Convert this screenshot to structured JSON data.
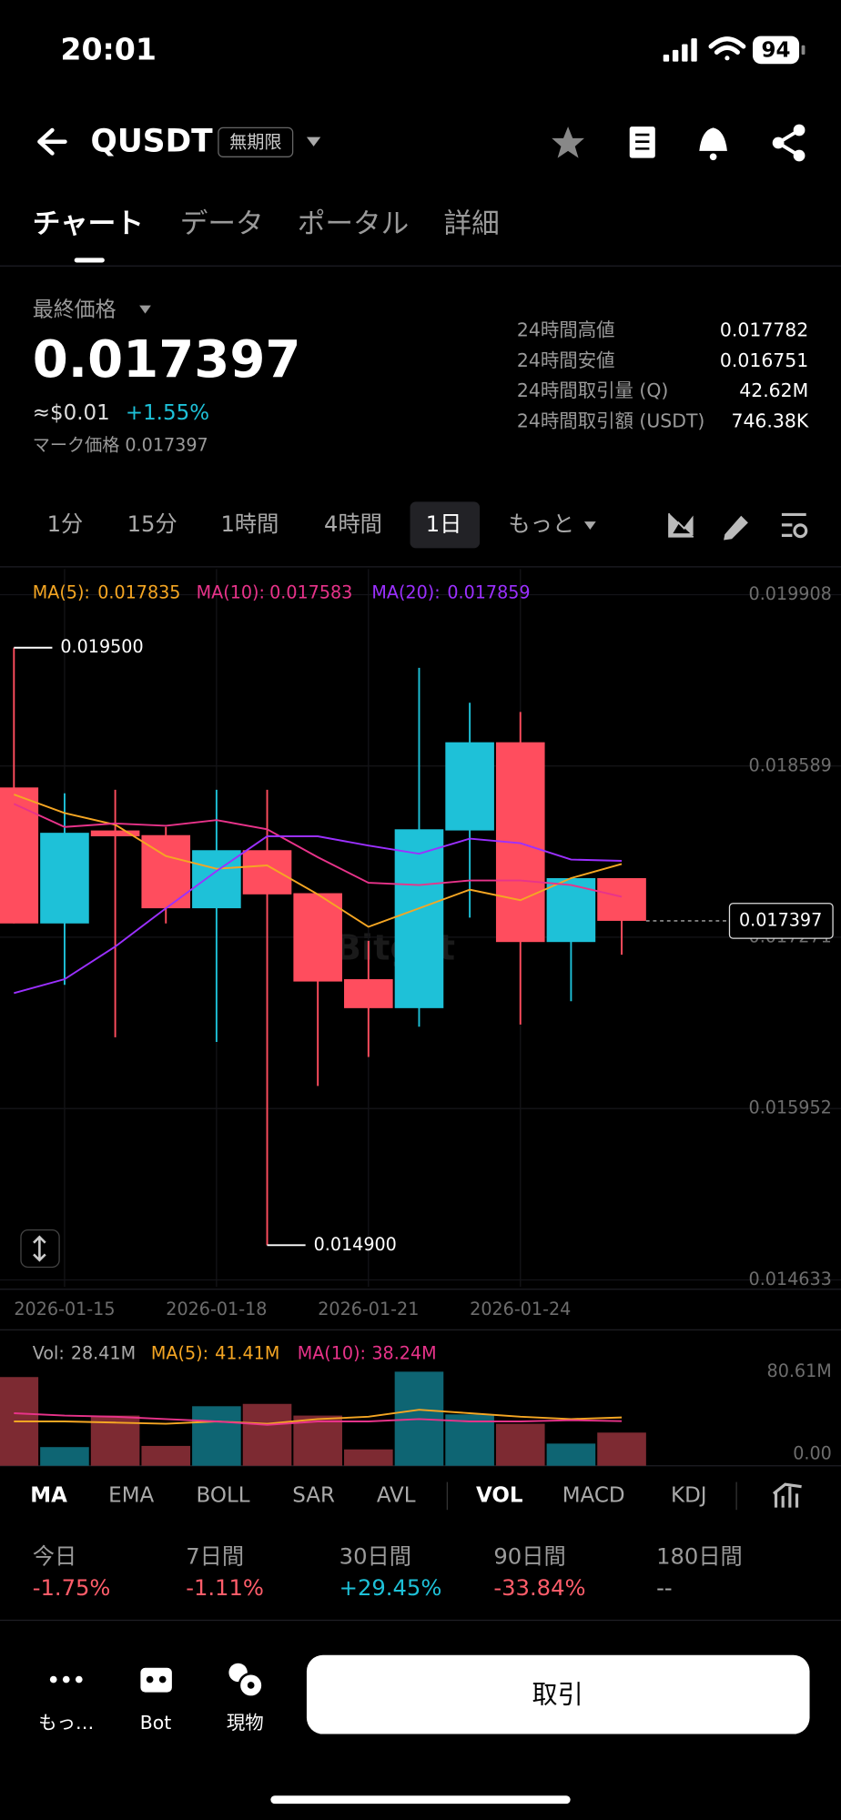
{
  "status_bar": {
    "time": "20:01",
    "battery": "94"
  },
  "header": {
    "symbol": "QUSDT",
    "tag": "無期限"
  },
  "tabs": [
    "チャート",
    "データ",
    "ポータル",
    "詳細"
  ],
  "price": {
    "label": "最終価格",
    "last": "0.017397",
    "usd": "≈$0.01",
    "change": "+1.55%",
    "mark": "マーク価格 0.017397"
  },
  "stats": [
    {
      "label": "24時間高値",
      "value": "0.017782"
    },
    {
      "label": "24時間安値",
      "value": "0.016751"
    },
    {
      "label": "24時間取引量 (Q)",
      "value": "42.62M"
    },
    {
      "label": "24時間取引額 (USDT)",
      "value": "746.38K"
    }
  ],
  "intervals": [
    "1分",
    "15分",
    "1時間",
    "4時間",
    "1日",
    "もっと"
  ],
  "chart_data": {
    "type": "candlestick",
    "watermark": "Bitget",
    "categories": [
      null,
      "2026-01-15",
      null,
      null,
      "2026-01-18",
      null,
      null,
      "2026-01-21",
      null,
      null,
      "2026-01-24",
      null,
      null
    ],
    "open": [
      0.018424,
      0.017377,
      0.018093,
      0.018057,
      0.017494,
      0.017941,
      0.01761,
      0.016948,
      0.016725,
      0.018093,
      0.018772,
      0.017234,
      0.017726
    ],
    "high": [
      0.0195,
      0.018379,
      0.018406,
      0.01812,
      0.018406,
      0.018406,
      0.01761,
      0.017243,
      0.019345,
      0.019076,
      0.019005,
      0.017726,
      0.017726
    ],
    "low": [
      0.017377,
      0.016904,
      0.016501,
      0.017377,
      0.016465,
      0.0149,
      0.016126,
      0.016349,
      0.016582,
      0.017422,
      0.016599,
      0.016778,
      0.017136
    ],
    "close": [
      0.017377,
      0.018075,
      0.018048,
      0.017494,
      0.017941,
      0.017601,
      0.01693,
      0.016725,
      0.018102,
      0.018772,
      0.017234,
      0.017726,
      0.017397
    ],
    "up_color": "#1ec1d8",
    "down_color": "#ff4d5e",
    "ma": [
      {
        "name": "MA(5):",
        "color": "#f5a623",
        "values": [
          0.01837,
          0.018227,
          0.018137,
          0.017896,
          0.017798,
          0.017824,
          0.017601,
          0.017351,
          0.017494,
          0.017637,
          0.017556,
          0.017726,
          0.017835
        ]
      },
      {
        "name": "MA(10):",
        "color": "#e8338a",
        "values": [
          0.018298,
          0.01812,
          0.018147,
          0.018129,
          0.018173,
          0.018102,
          0.017887,
          0.01769,
          0.017673,
          0.017708,
          0.017708,
          0.017673,
          0.017583
        ]
      },
      {
        "name": "MA(20):",
        "color": "#9b30ff",
        "values": [
          0.016841,
          0.016948,
          0.017199,
          0.017494,
          0.01778,
          0.018048,
          0.018048,
          0.017977,
          0.017914,
          0.01803,
          0.017995,
          0.017869,
          0.017859
        ]
      }
    ],
    "annotations": [
      {
        "value": 0.0195,
        "label": "0.019500"
      },
      {
        "value": 0.0149,
        "label": "0.014900"
      }
    ],
    "last_price": 0.017397,
    "ylim": [
      0.014579,
      0.020105
    ],
    "yticks": [
      0.019908,
      0.018589,
      0.017271,
      0.015952,
      0.014633
    ],
    "grid": true,
    "volume": {
      "name": "Vol:",
      "values": [
        76,
        16,
        43,
        17,
        51,
        53,
        43,
        14,
        80.61,
        44,
        36,
        19,
        28.41
      ],
      "value_labels": [
        null,
        null,
        null,
        null,
        null,
        null,
        null,
        null,
        null,
        null,
        null,
        null,
        "28.41M"
      ],
      "ylim": [
        0,
        80.61
      ],
      "yticks": [
        {
          "value": 80.61,
          "label": "80.61M"
        },
        {
          "value": 0,
          "label": "0.00"
        }
      ],
      "ma": [
        {
          "name": "MA(5):",
          "color": "#f5a623",
          "values": [
            38,
            38,
            37,
            36,
            38,
            36,
            40,
            42,
            48,
            45,
            42,
            40,
            41.41
          ],
          "value_labels": [
            null,
            null,
            null,
            null,
            null,
            null,
            null,
            null,
            null,
            null,
            null,
            null,
            "41.41M"
          ]
        },
        {
          "name": "MA(10):",
          "color": "#e8338a",
          "values": [
            45,
            43,
            42,
            40,
            38,
            35,
            38,
            38,
            40,
            38,
            38,
            39,
            38.24
          ],
          "value_labels": [
            null,
            null,
            null,
            null,
            null,
            null,
            null,
            null,
            null,
            null,
            null,
            null,
            "38.24M"
          ]
        }
      ]
    }
  },
  "indicators": [
    "MA",
    "EMA",
    "BOLL",
    "SAR",
    "AVL",
    "VOL",
    "MACD",
    "KDJ"
  ],
  "performance": [
    {
      "period": "今日",
      "change": "-1.75%"
    },
    {
      "period": "7日間",
      "change": "-1.11%"
    },
    {
      "period": "30日間",
      "change": "+29.45%"
    },
    {
      "period": "90日間",
      "change": "-33.84%"
    },
    {
      "period": "180日間",
      "change": "--"
    }
  ],
  "bottom_bar": {
    "more": "もっ…",
    "bot": "Bot",
    "spot": "現物",
    "trade": "取引"
  }
}
